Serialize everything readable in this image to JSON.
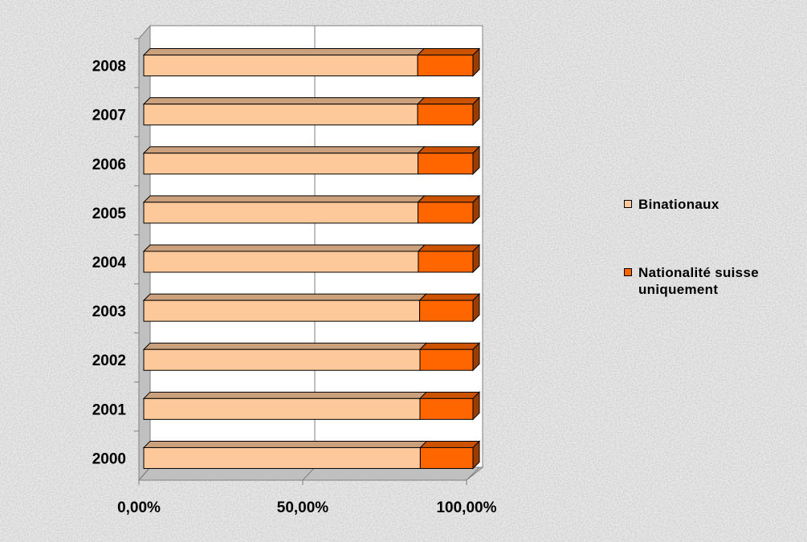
{
  "chart_data": {
    "type": "bar",
    "orientation": "horizontal",
    "stacking": "percent",
    "three_d": true,
    "categories": [
      "2000",
      "2001",
      "2002",
      "2003",
      "2004",
      "2005",
      "2006",
      "2007",
      "2008"
    ],
    "series": [
      {
        "name": "Binationaux",
        "color": "#fdc99b",
        "values": [
          84.0,
          83.9,
          83.9,
          83.8,
          83.4,
          83.3,
          83.3,
          83.2,
          83.2
        ]
      },
      {
        "name": "Nationalité suisse uniquement",
        "color": "#ff6600",
        "values": [
          16.0,
          16.1,
          16.1,
          16.2,
          16.6,
          16.7,
          16.7,
          16.8,
          16.8
        ]
      }
    ],
    "xaxis": {
      "ticks": [
        "0,00%",
        "50,00%",
        "100,00%"
      ],
      "range": [
        0,
        100
      ]
    },
    "grid": true,
    "legend_position": "right"
  }
}
